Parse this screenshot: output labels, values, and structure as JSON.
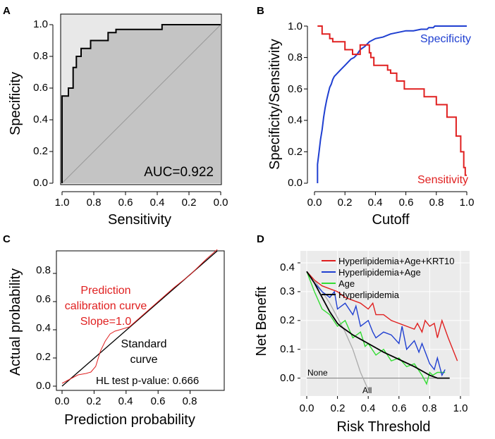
{
  "chart_data": [
    {
      "panel_letter": "A",
      "type": "line",
      "title": "",
      "xlabel": "Sensitivity",
      "ylabel": "Specificity",
      "x_reversed": true,
      "xlim": [
        1.0,
        0.0
      ],
      "ylim": [
        0.0,
        1.0
      ],
      "xticks": [
        "1.0",
        "0.8",
        "0.6",
        "0.4",
        "0.2",
        "0.0"
      ],
      "yticks": [
        "0.0",
        "0.2",
        "0.4",
        "0.6",
        "0.8",
        "1.0"
      ],
      "annotation": "AUC=0.922",
      "auc": 0.922,
      "roc_curve": {
        "x": [
          1.0,
          1.0,
          0.96,
          0.96,
          0.93,
          0.93,
          0.91,
          0.91,
          0.88,
          0.88,
          0.82,
          0.82,
          0.71,
          0.71,
          0.66,
          0.66,
          0.37,
          0.37,
          0.0
        ],
        "y": [
          0.0,
          0.55,
          0.55,
          0.6,
          0.6,
          0.73,
          0.73,
          0.8,
          0.8,
          0.85,
          0.85,
          0.9,
          0.9,
          0.95,
          0.95,
          0.97,
          0.97,
          1.0,
          1.0
        ]
      },
      "reference_line": {
        "x": [
          1.0,
          0.0
        ],
        "y": [
          0.0,
          1.0
        ]
      }
    },
    {
      "panel_letter": "B",
      "type": "line",
      "title": "",
      "xlabel": "Cutoff",
      "ylabel": "Specificity/Sensitivity",
      "xlim": [
        0.0,
        1.0
      ],
      "ylim": [
        0.0,
        1.0
      ],
      "xticks": [
        "0.0",
        "0.2",
        "0.4",
        "0.6",
        "0.8",
        "1.0"
      ],
      "yticks": [
        "0.0",
        "0.2",
        "0.4",
        "0.6",
        "0.8",
        "1.0"
      ],
      "series": [
        {
          "name": "Specificity",
          "color": "#1f3fd1",
          "x": [
            0.02,
            0.02,
            0.03,
            0.04,
            0.05,
            0.06,
            0.07,
            0.08,
            0.09,
            0.1,
            0.11,
            0.12,
            0.13,
            0.15,
            0.17,
            0.18,
            0.2,
            0.22,
            0.24,
            0.26,
            0.28,
            0.3,
            0.33,
            0.36,
            0.4,
            0.45,
            0.5,
            0.6,
            0.65,
            0.7,
            0.74,
            0.75,
            0.78,
            0.79,
            0.8,
            1.0
          ],
          "y": [
            0.0,
            0.12,
            0.2,
            0.28,
            0.34,
            0.42,
            0.48,
            0.53,
            0.57,
            0.61,
            0.63,
            0.66,
            0.68,
            0.7,
            0.72,
            0.73,
            0.75,
            0.77,
            0.79,
            0.8,
            0.82,
            0.85,
            0.87,
            0.9,
            0.92,
            0.93,
            0.95,
            0.97,
            0.97,
            0.98,
            0.98,
            0.99,
            0.99,
            1.0,
            1.0,
            1.0
          ]
        },
        {
          "name": "Sensitivity",
          "color": "#e02020",
          "x": [
            0.02,
            0.05,
            0.05,
            0.1,
            0.1,
            0.12,
            0.12,
            0.2,
            0.2,
            0.25,
            0.25,
            0.3,
            0.3,
            0.36,
            0.36,
            0.37,
            0.37,
            0.39,
            0.39,
            0.48,
            0.48,
            0.5,
            0.5,
            0.54,
            0.54,
            0.59,
            0.59,
            0.72,
            0.72,
            0.8,
            0.8,
            0.87,
            0.87,
            0.93,
            0.93,
            0.96,
            0.96,
            0.98,
            0.98,
            0.99,
            0.99,
            1.0
          ],
          "y": [
            1.0,
            1.0,
            0.95,
            0.95,
            0.92,
            0.92,
            0.9,
            0.9,
            0.85,
            0.85,
            0.82,
            0.82,
            0.88,
            0.88,
            0.83,
            0.83,
            0.8,
            0.8,
            0.75,
            0.75,
            0.72,
            0.72,
            0.7,
            0.7,
            0.65,
            0.65,
            0.6,
            0.6,
            0.55,
            0.55,
            0.5,
            0.5,
            0.42,
            0.42,
            0.3,
            0.3,
            0.2,
            0.2,
            0.1,
            0.1,
            0.05,
            0.05
          ]
        }
      ],
      "series_labels": [
        "Specificity",
        "Sensitivity"
      ]
    },
    {
      "panel_letter": "C",
      "type": "line",
      "title": "",
      "xlabel": "Prediction probability",
      "ylabel": "Actual probability",
      "xlim": [
        0.0,
        1.0
      ],
      "ylim": [
        0.0,
        0.95
      ],
      "xticks": [
        "0.0",
        "0.2",
        "0.4",
        "0.6",
        "0.8"
      ],
      "yticks": [
        "0.0",
        "0.2",
        "0.4",
        "0.6",
        "0.8"
      ],
      "annotations": {
        "calibration_label": [
          "Prediction",
          "calibration curve",
          "Slope=1.0"
        ],
        "standard_label": [
          "Standard",
          "curve"
        ],
        "hl_test": "HL test p-value: 0.666"
      },
      "series": [
        {
          "name": "Standard curve",
          "color": "#000000",
          "x": [
            0.0,
            0.97
          ],
          "y": [
            0.0,
            0.96
          ]
        },
        {
          "name": "Prediction calibration curve",
          "color": "#e02020",
          "x": [
            0.0,
            0.05,
            0.1,
            0.15,
            0.18,
            0.21,
            0.24,
            0.27,
            0.3,
            0.33,
            0.36,
            0.42,
            0.5,
            0.6,
            0.7,
            0.8,
            0.9,
            0.97
          ],
          "y": [
            0.02,
            0.05,
            0.08,
            0.09,
            0.1,
            0.14,
            0.25,
            0.32,
            0.37,
            0.39,
            0.4,
            0.42,
            0.5,
            0.6,
            0.7,
            0.79,
            0.9,
            0.97
          ]
        }
      ]
    },
    {
      "panel_letter": "D",
      "type": "line",
      "title": "",
      "xlabel": "Risk Threshold",
      "ylabel": "Net Benefit",
      "xlim": [
        0.0,
        1.0
      ],
      "ylim": [
        -0.04,
        0.4
      ],
      "xticks": [
        "0.0",
        "0.2",
        "0.4",
        "0.6",
        "0.8",
        "1.0"
      ],
      "yticks": [
        "0.0",
        "0.1",
        "0.2",
        "0.3",
        "0.4"
      ],
      "legend": [
        "Hyperlipidemia+Age+KRT10",
        "Hyperlipidemia+Age",
        "Age",
        "Hyperlipidemia"
      ],
      "line_labels": [
        "None",
        "All"
      ],
      "series": [
        {
          "name": "Hyperlipidemia+Age+KRT10",
          "color": "#e02020",
          "x": [
            0.0,
            0.05,
            0.1,
            0.15,
            0.2,
            0.25,
            0.3,
            0.35,
            0.4,
            0.43,
            0.45,
            0.5,
            0.55,
            0.6,
            0.65,
            0.7,
            0.72,
            0.75,
            0.77,
            0.8,
            0.83,
            0.85,
            0.88,
            0.9,
            0.92,
            0.95,
            0.98
          ],
          "y": [
            0.37,
            0.34,
            0.32,
            0.31,
            0.3,
            0.28,
            0.27,
            0.26,
            0.24,
            0.26,
            0.22,
            0.22,
            0.2,
            0.19,
            0.18,
            0.17,
            0.19,
            0.16,
            0.2,
            0.18,
            0.19,
            0.14,
            0.2,
            0.17,
            0.14,
            0.1,
            0.06
          ]
        },
        {
          "name": "Hyperlipidemia+Age",
          "color": "#1f3fd1",
          "x": [
            0.0,
            0.05,
            0.1,
            0.15,
            0.18,
            0.2,
            0.25,
            0.3,
            0.32,
            0.35,
            0.4,
            0.43,
            0.45,
            0.5,
            0.55,
            0.6,
            0.62,
            0.65,
            0.7,
            0.73,
            0.75,
            0.8,
            0.83,
            0.85,
            0.88,
            0.9
          ],
          "y": [
            0.37,
            0.33,
            0.3,
            0.28,
            0.3,
            0.24,
            0.26,
            0.22,
            0.25,
            0.18,
            0.2,
            0.16,
            0.14,
            0.16,
            0.15,
            0.12,
            0.18,
            0.1,
            0.13,
            0.09,
            0.12,
            0.05,
            0.03,
            0.07,
            0.01,
            0.03
          ]
        },
        {
          "name": "Age",
          "color": "#33dd33",
          "x": [
            0.0,
            0.05,
            0.1,
            0.15,
            0.2,
            0.25,
            0.3,
            0.35,
            0.38,
            0.4,
            0.45,
            0.5,
            0.55,
            0.6,
            0.65,
            0.7,
            0.75,
            0.78,
            0.8,
            0.82,
            0.85,
            0.9
          ],
          "y": [
            0.37,
            0.3,
            0.24,
            0.22,
            0.18,
            0.2,
            0.14,
            0.16,
            0.11,
            0.12,
            0.08,
            0.1,
            0.06,
            0.07,
            0.04,
            0.05,
            0.01,
            -0.02,
            0.02,
            0.01,
            0.02,
            0.02
          ]
        },
        {
          "name": "Hyperlipidemia",
          "color": "#000000",
          "x": [
            0.0,
            0.05,
            0.1,
            0.15,
            0.2,
            0.22,
            0.3,
            0.4,
            0.5,
            0.6,
            0.7,
            0.75,
            0.8,
            0.85,
            0.9,
            0.93
          ],
          "y": [
            0.37,
            0.33,
            0.28,
            0.23,
            0.19,
            0.18,
            0.15,
            0.12,
            0.09,
            0.065,
            0.04,
            0.025,
            0.01,
            0.0,
            0.0,
            0.0
          ]
        },
        {
          "name": "All",
          "color": "#aaaaaa",
          "x": [
            0.0,
            0.05,
            0.1,
            0.15,
            0.2,
            0.25,
            0.3,
            0.35,
            0.4
          ],
          "y": [
            0.37,
            0.34,
            0.3,
            0.26,
            0.21,
            0.16,
            0.1,
            0.02,
            -0.04
          ]
        },
        {
          "name": "None",
          "color": "#777777",
          "x": [
            0.0,
            0.93
          ],
          "y": [
            0.0,
            0.0
          ]
        }
      ]
    }
  ]
}
